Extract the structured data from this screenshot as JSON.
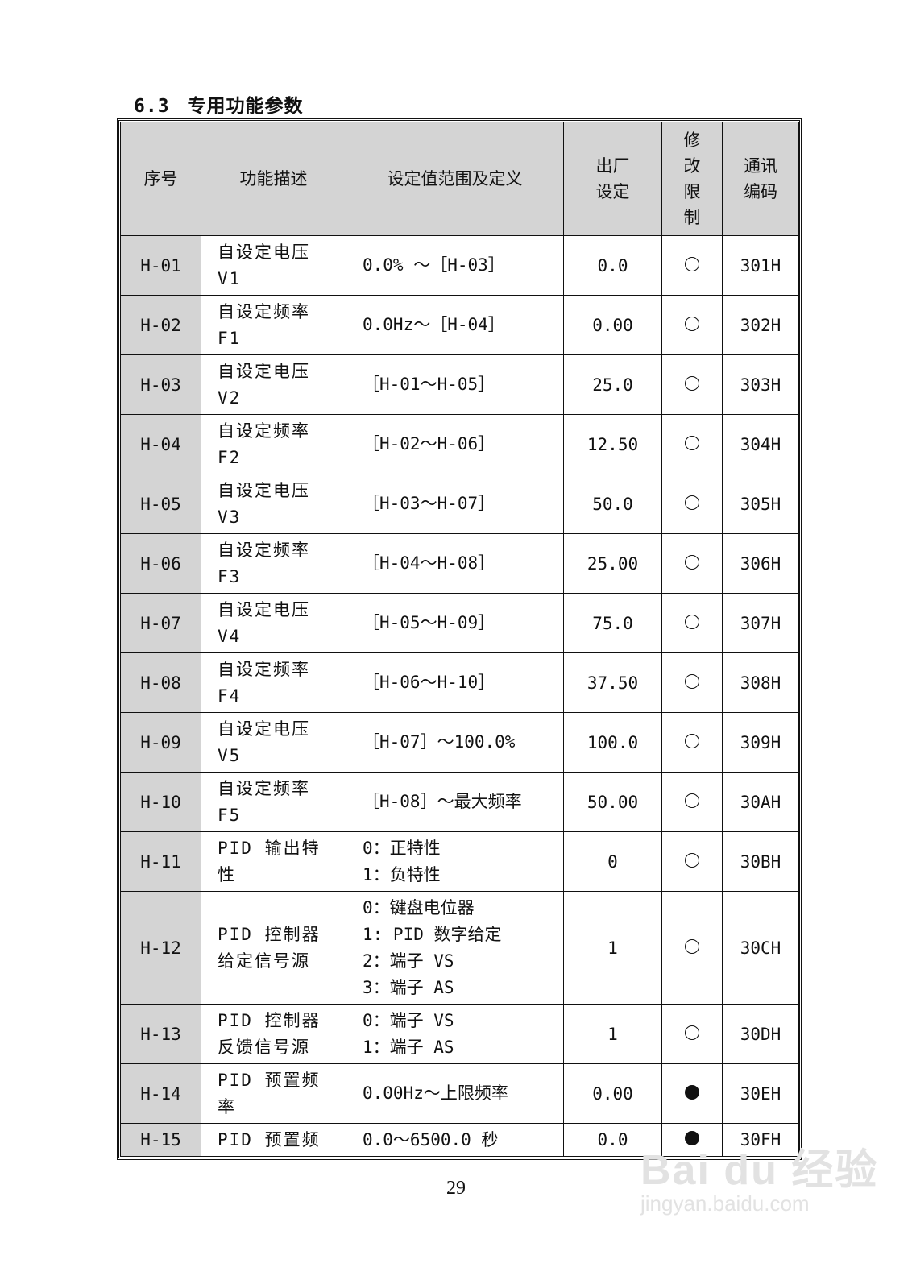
{
  "section": {
    "number": "6.3",
    "title": "专用功能参数"
  },
  "table": {
    "headers": [
      {
        "lines": [
          "序号"
        ]
      },
      {
        "lines": [
          "功能描述"
        ]
      },
      {
        "lines": [
          "设定值范围及定义"
        ]
      },
      {
        "lines": [
          "出厂",
          "设定"
        ]
      },
      {
        "lines": [
          "修",
          "改",
          "限",
          "制"
        ]
      },
      {
        "lines": [
          "通讯",
          "编码"
        ]
      }
    ],
    "rows": [
      {
        "id": "H-01",
        "desc": [
          "自设定电压",
          "V1"
        ],
        "range": [
          "0.0% ～［H-03］"
        ],
        "default": "0.0",
        "limit": "circle-open-icon",
        "code": "301H"
      },
      {
        "id": "H-02",
        "desc": [
          "自设定频率",
          "F1"
        ],
        "range": [
          "0.0Hz～［H-04］"
        ],
        "default": "0.00",
        "limit": "circle-open-icon",
        "code": "302H"
      },
      {
        "id": "H-03",
        "desc": [
          "自设定电压",
          "V2"
        ],
        "range": [
          "［H-01～H-05］"
        ],
        "default": "25.0",
        "limit": "circle-open-icon",
        "code": "303H"
      },
      {
        "id": "H-04",
        "desc": [
          "自设定频率",
          "F2"
        ],
        "range": [
          "［H-02～H-06］"
        ],
        "default": "12.50",
        "limit": "circle-open-icon",
        "code": "304H"
      },
      {
        "id": "H-05",
        "desc": [
          "自设定电压",
          "V3"
        ],
        "range": [
          "［H-03～H-07］"
        ],
        "default": "50.0",
        "limit": "circle-open-icon",
        "code": "305H"
      },
      {
        "id": "H-06",
        "desc": [
          "自设定频率",
          "F3"
        ],
        "range": [
          "［H-04～H-08］"
        ],
        "default": "25.00",
        "limit": "circle-open-icon",
        "code": "306H"
      },
      {
        "id": "H-07",
        "desc": [
          "自设定电压",
          "V4"
        ],
        "range": [
          "［H-05～H-09］"
        ],
        "default": "75.0",
        "limit": "circle-open-icon",
        "code": "307H"
      },
      {
        "id": "H-08",
        "desc": [
          "自设定频率",
          "F4"
        ],
        "range": [
          "［H-06～H-10］"
        ],
        "default": "37.50",
        "limit": "circle-open-icon",
        "code": "308H"
      },
      {
        "id": "H-09",
        "desc": [
          "自设定电压",
          "V5"
        ],
        "range": [
          "［H-07］～100.0%"
        ],
        "default": "100.0",
        "limit": "circle-open-icon",
        "code": "309H"
      },
      {
        "id": "H-10",
        "desc": [
          "自设定频率",
          "F5"
        ],
        "range": [
          "［H-08］～最大频率"
        ],
        "default": "50.00",
        "limit": "circle-open-icon",
        "code": "30AH"
      },
      {
        "id": "H-11",
        "desc": [
          "PID 输出特",
          "性"
        ],
        "range": [
          "0：正特性",
          "1：负特性"
        ],
        "default": "0",
        "limit": "circle-open-icon",
        "code": "30BH"
      },
      {
        "id": "H-12",
        "desc": [
          "PID 控制器",
          "给定信号源"
        ],
        "range": [
          "0：键盘电位器",
          "1: PID 数字给定",
          "2：端子 VS",
          "3：端子 AS"
        ],
        "default": "1",
        "limit": "circle-open-icon",
        "code": "30CH"
      },
      {
        "id": "H-13",
        "desc": [
          "PID 控制器",
          "反馈信号源"
        ],
        "range": [
          "0：端子 VS",
          "1：端子 AS"
        ],
        "default": "1",
        "limit": "circle-open-icon",
        "code": "30DH"
      },
      {
        "id": "H-14",
        "desc": [
          "PID 预置频",
          "率"
        ],
        "range": [
          "0.00Hz～上限频率"
        ],
        "default": "0.00",
        "limit": "circle-filled-icon",
        "code": "30EH"
      },
      {
        "id": "H-15",
        "desc": [
          "PID 预置频"
        ],
        "range": [
          "0.0～6500.0 秒"
        ],
        "default": "0.0",
        "limit": "circle-filled-icon",
        "code": "30FH"
      }
    ]
  },
  "page_number": "29",
  "watermark": {
    "logo": "Baidu经验",
    "url": "jingyan.baidu.com"
  }
}
